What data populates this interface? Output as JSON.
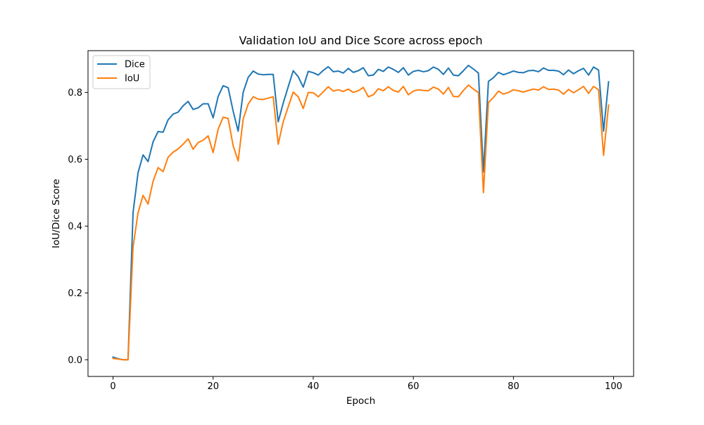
{
  "chart_data": {
    "type": "line",
    "title": "Validation IoU and Dice Score across epoch",
    "xlabel": "Epoch",
    "ylabel": "IoU/Dice Score",
    "xlim": [
      -5,
      104
    ],
    "ylim": [
      -0.05,
      0.925
    ],
    "xticks": [
      0,
      20,
      40,
      60,
      80,
      100
    ],
    "yticks": [
      0.0,
      0.2,
      0.4,
      0.6,
      0.8
    ],
    "ytick_labels": [
      "0.0",
      "0.2",
      "0.4",
      "0.6",
      "0.8"
    ],
    "grid": false,
    "legend_position": "top-left",
    "x": [
      0,
      1,
      2,
      3,
      4,
      5,
      6,
      7,
      8,
      9,
      10,
      11,
      12,
      13,
      14,
      15,
      16,
      17,
      18,
      19,
      20,
      21,
      22,
      23,
      24,
      25,
      26,
      27,
      28,
      29,
      30,
      31,
      32,
      33,
      34,
      35,
      36,
      37,
      38,
      39,
      40,
      41,
      42,
      43,
      44,
      45,
      46,
      47,
      48,
      49,
      50,
      51,
      52,
      53,
      54,
      55,
      56,
      57,
      58,
      59,
      60,
      61,
      62,
      63,
      64,
      65,
      66,
      67,
      68,
      69,
      70,
      71,
      72,
      73,
      74,
      75,
      76,
      77,
      78,
      79,
      80,
      81,
      82,
      83,
      84,
      85,
      86,
      87,
      88,
      89,
      90,
      91,
      92,
      93,
      94,
      95,
      96,
      97,
      98,
      99
    ],
    "series": [
      {
        "name": "Dice",
        "color": "#1f77b4",
        "values": [
          0.008,
          0.003,
          0.0,
          0.0,
          0.44,
          0.56,
          0.613,
          0.593,
          0.652,
          0.683,
          0.681,
          0.718,
          0.735,
          0.741,
          0.76,
          0.773,
          0.749,
          0.754,
          0.766,
          0.766,
          0.724,
          0.788,
          0.82,
          0.814,
          0.744,
          0.684,
          0.8,
          0.845,
          0.864,
          0.855,
          0.853,
          0.854,
          0.854,
          0.712,
          0.768,
          0.817,
          0.865,
          0.847,
          0.816,
          0.863,
          0.859,
          0.852,
          0.866,
          0.877,
          0.862,
          0.864,
          0.858,
          0.872,
          0.86,
          0.865,
          0.874,
          0.85,
          0.852,
          0.869,
          0.863,
          0.876,
          0.869,
          0.86,
          0.874,
          0.852,
          0.863,
          0.866,
          0.862,
          0.865,
          0.876,
          0.869,
          0.854,
          0.873,
          0.852,
          0.85,
          0.865,
          0.881,
          0.87,
          0.858,
          0.562,
          0.833,
          0.844,
          0.86,
          0.853,
          0.858,
          0.864,
          0.86,
          0.859,
          0.865,
          0.866,
          0.862,
          0.873,
          0.866,
          0.866,
          0.864,
          0.853,
          0.867,
          0.856,
          0.865,
          0.872,
          0.852,
          0.876,
          0.867,
          0.684,
          0.832
        ]
      },
      {
        "name": "IoU",
        "color": "#ff7f0e",
        "values": [
          0.004,
          0.002,
          0.0,
          0.0,
          0.337,
          0.44,
          0.492,
          0.466,
          0.534,
          0.575,
          0.563,
          0.606,
          0.621,
          0.631,
          0.645,
          0.661,
          0.63,
          0.65,
          0.657,
          0.67,
          0.62,
          0.69,
          0.726,
          0.722,
          0.64,
          0.595,
          0.72,
          0.765,
          0.787,
          0.78,
          0.779,
          0.783,
          0.787,
          0.645,
          0.712,
          0.757,
          0.801,
          0.787,
          0.752,
          0.8,
          0.799,
          0.787,
          0.802,
          0.817,
          0.804,
          0.808,
          0.803,
          0.81,
          0.8,
          0.805,
          0.815,
          0.787,
          0.793,
          0.811,
          0.805,
          0.817,
          0.806,
          0.801,
          0.818,
          0.793,
          0.804,
          0.808,
          0.806,
          0.805,
          0.816,
          0.81,
          0.795,
          0.815,
          0.788,
          0.787,
          0.806,
          0.822,
          0.81,
          0.8,
          0.5,
          0.77,
          0.785,
          0.804,
          0.795,
          0.8,
          0.808,
          0.805,
          0.801,
          0.806,
          0.81,
          0.807,
          0.817,
          0.809,
          0.81,
          0.807,
          0.795,
          0.809,
          0.799,
          0.808,
          0.818,
          0.797,
          0.818,
          0.808,
          0.612,
          0.762
        ]
      }
    ]
  }
}
